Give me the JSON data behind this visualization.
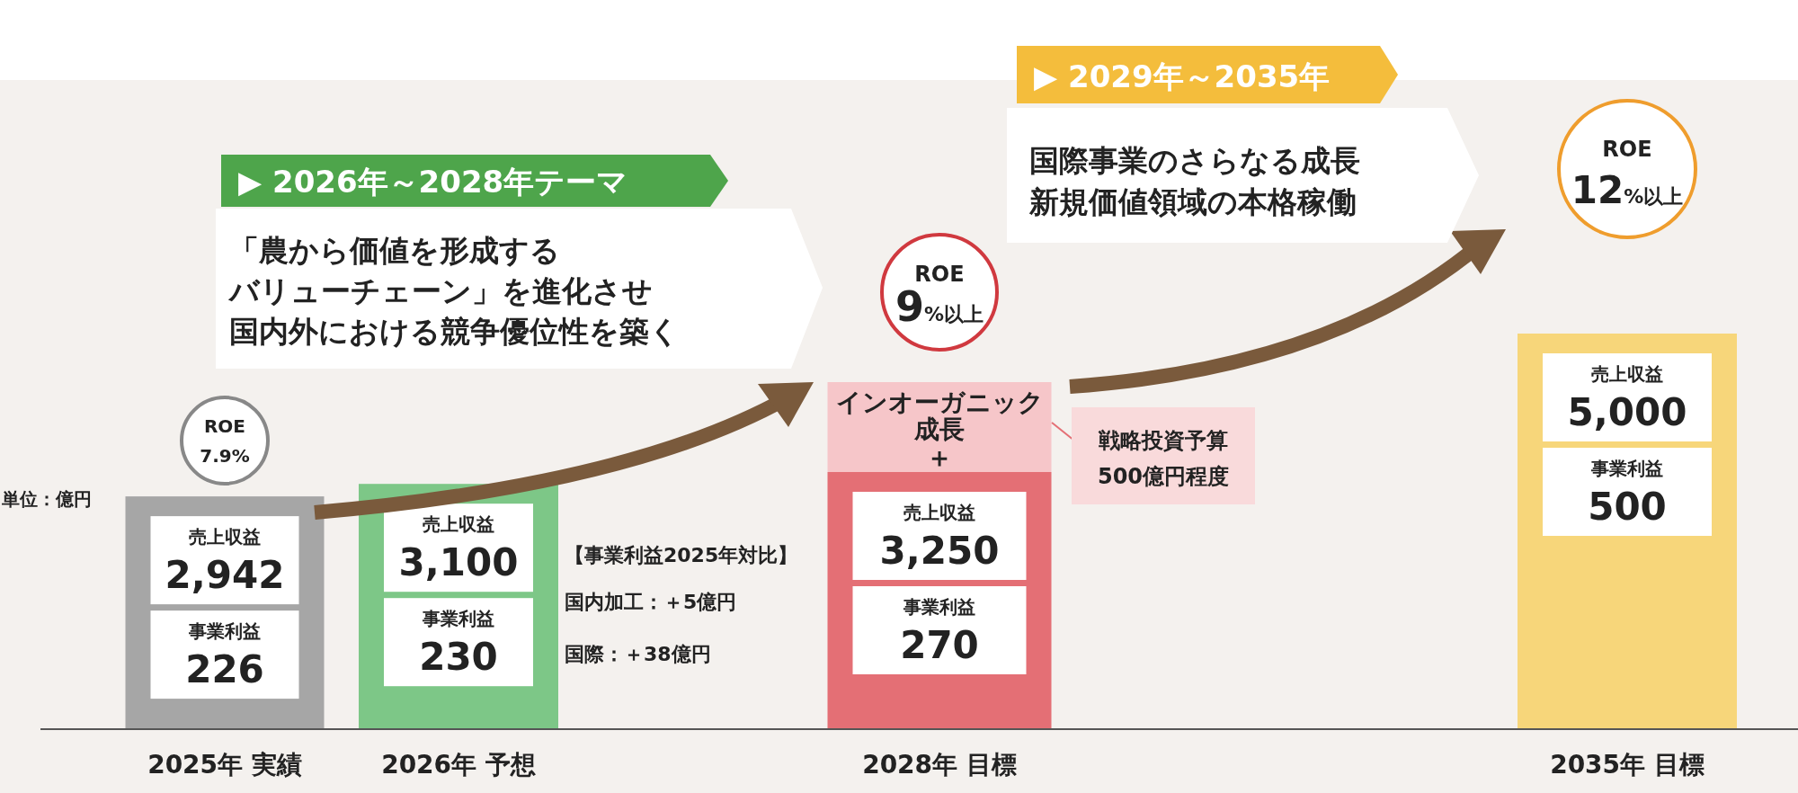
{
  "chart_data": {
    "type": "bar",
    "categories": [
      "2025年 実績",
      "2026年 予想",
      "2028年 目標",
      "2035年 目標"
    ],
    "values": [
      2942,
      3100,
      3250,
      5000
    ],
    "value_labels": [
      "2,942",
      "3,100",
      "3,250",
      "5,000"
    ],
    "colors": [
      "#a6a6a6",
      "#7dc787",
      "#e46f75",
      "#f7d67a"
    ],
    "annotations": [
      "単位：億円",
      "ROE\n7.9%",
      "▶ 2026年～2028年テーマ",
      "「農から価値を形成する",
      "バリューチェーン」を進化させ",
      "国内外における競争優位性を築く",
      "ROE\n9%以上",
      "【事業利益2025年対比】",
      "国内加工：＋5億円",
      "国際：＋38億円",
      "インオーガニック",
      "成長",
      "＋",
      "戦略投資予算",
      "500億円程度",
      "▶ 2029年～2035年",
      "国際事業のさらなる成長",
      "新規価値領域の本格稼働",
      "ROE\n12%以上",
      "売上収益",
      "売上収益",
      "売上収益",
      "売上収益",
      "事業利益",
      "事業利益",
      "事業利益",
      "事業利益",
      "226",
      "230",
      "270",
      "500"
    ]
  }
}
